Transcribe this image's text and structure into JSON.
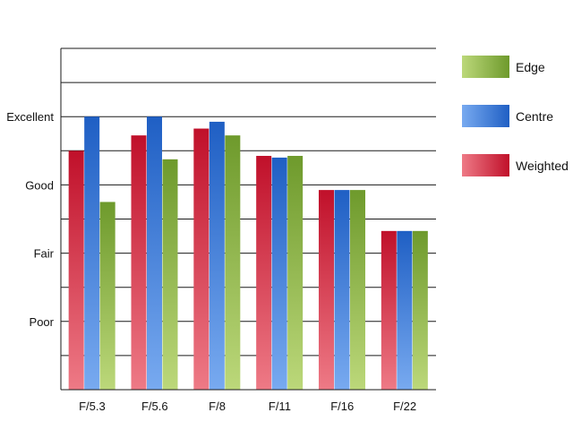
{
  "chart_data": {
    "type": "bar",
    "title": "",
    "xlabel": "",
    "ylabel": "",
    "categories": [
      "F/5.3",
      "F/5.6",
      "F/8",
      "F/11",
      "F/16",
      "F/22"
    ],
    "y_tick_labels": [
      {
        "label": "Poor",
        "value": 2
      },
      {
        "label": "Fair",
        "value": 4
      },
      {
        "label": "Good",
        "value": 6
      },
      {
        "label": "Excellent",
        "value": 8
      }
    ],
    "ylim": [
      0,
      10
    ],
    "grid": true,
    "legend_position": "right",
    "series": [
      {
        "name": "Weighted",
        "color": "#c0102a",
        "light": "#ee7a86",
        "values": [
          7.0,
          7.45,
          7.65,
          6.85,
          5.85,
          4.65
        ]
      },
      {
        "name": "Centre",
        "color": "#1f5fc4",
        "light": "#78aaf0",
        "values": [
          8.0,
          8.0,
          7.85,
          6.8,
          5.85,
          4.65
        ]
      },
      {
        "name": "Edge",
        "color": "#6e9a2c",
        "light": "#bcd87a",
        "values": [
          5.5,
          6.75,
          7.45,
          6.85,
          5.85,
          4.65
        ]
      }
    ],
    "legend_order": [
      "Edge",
      "Centre",
      "Weighted"
    ]
  }
}
